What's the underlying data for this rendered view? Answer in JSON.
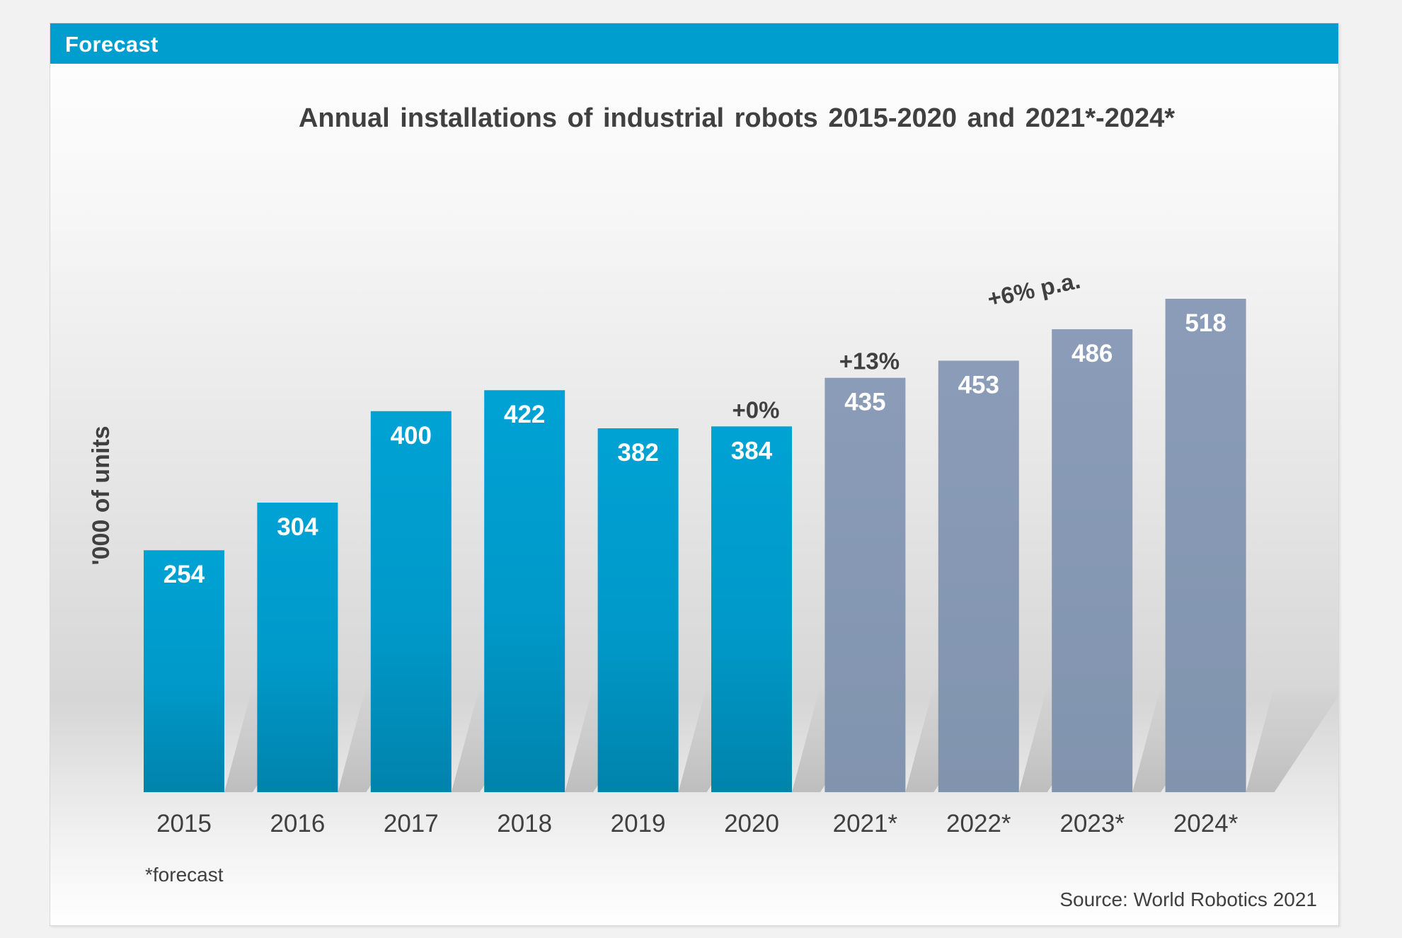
{
  "header": {
    "title": "Forecast"
  },
  "footnote": "*forecast",
  "source": "Source: World Robotics 2021",
  "colors": {
    "header": "#009ecf",
    "actual": "#00a0d2",
    "forecast": "#8a9bb6"
  },
  "chart_data": {
    "type": "bar",
    "title": "Annual installations of industrial robots 2015-2020 and 2021*-2024*",
    "xlabel": "",
    "ylabel": "'000 of units",
    "ylim": [
      0,
      600
    ],
    "grid": false,
    "categories": [
      "2015",
      "2016",
      "2017",
      "2018",
      "2019",
      "2020",
      "2021*",
      "2022*",
      "2023*",
      "2024*"
    ],
    "values": [
      254,
      304,
      400,
      422,
      382,
      384,
      435,
      453,
      486,
      518
    ],
    "forecast": [
      false,
      false,
      false,
      false,
      false,
      false,
      true,
      true,
      true,
      true
    ],
    "annotations": [
      {
        "text": "+0%",
        "category": "2020"
      },
      {
        "text": "+13%",
        "category": "2021*"
      },
      {
        "text": "+6% p.a.",
        "category": "2023*"
      }
    ]
  }
}
